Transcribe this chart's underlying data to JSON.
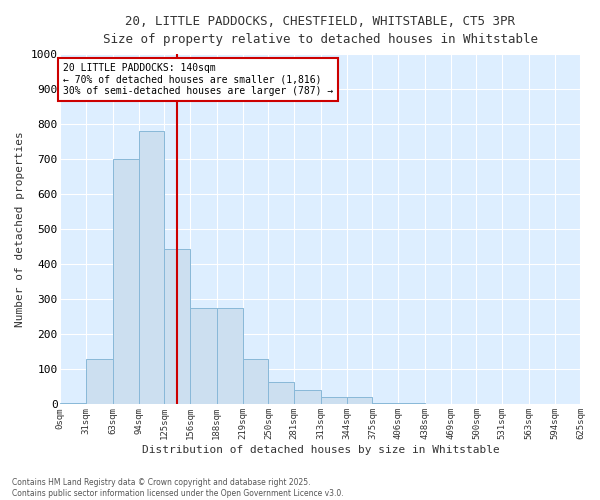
{
  "title_line1": "20, LITTLE PADDOCKS, CHESTFIELD, WHITSTABLE, CT5 3PR",
  "title_line2": "Size of property relative to detached houses in Whitstable",
  "xlabel": "Distribution of detached houses by size in Whitstable",
  "ylabel": "Number of detached properties",
  "bar_color": "#ccdff0",
  "bar_edge_color": "#88b8d8",
  "background_color": "#ddeeff",
  "grid_color": "#ffffff",
  "vline_color": "#cc0000",
  "vline_x": 140,
  "annotation_text": "20 LITTLE PADDOCKS: 140sqm\n← 70% of detached houses are smaller (1,816)\n30% of semi-detached houses are larger (787) →",
  "footnote1": "Contains HM Land Registry data © Crown copyright and database right 2025.",
  "footnote2": "Contains public sector information licensed under the Open Government Licence v3.0.",
  "bins": [
    0,
    31,
    63,
    94,
    125,
    156,
    188,
    219,
    250,
    281,
    313,
    344,
    375,
    406,
    438,
    469,
    500,
    531,
    563,
    594,
    625
  ],
  "counts": [
    5,
    130,
    700,
    780,
    445,
    275,
    275,
    130,
    65,
    40,
    20,
    20,
    5,
    5,
    0,
    0,
    0,
    0,
    0,
    0
  ],
  "ylim": [
    0,
    1000
  ],
  "yticks": [
    0,
    100,
    200,
    300,
    400,
    500,
    600,
    700,
    800,
    900,
    1000
  ]
}
